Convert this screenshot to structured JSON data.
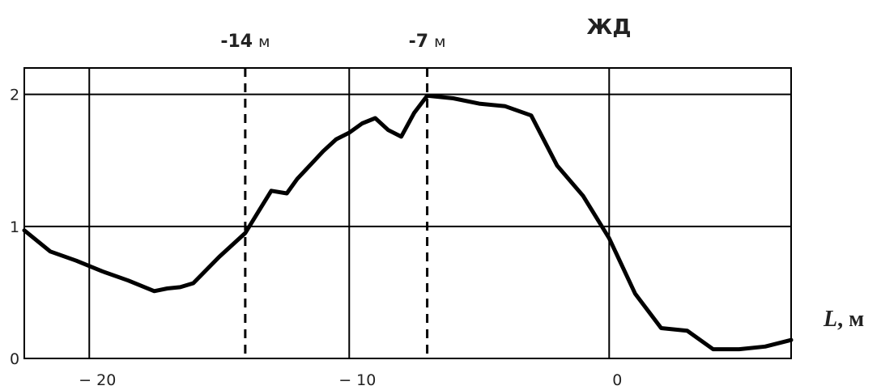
{
  "chart_data": {
    "type": "line",
    "title": "ЖД",
    "xlabel": {
      "symbol": "L",
      "unit": ", м"
    },
    "ylabel": "",
    "xlim": [
      -22.5,
      7
    ],
    "ylim": [
      0,
      2.2
    ],
    "x_ticks": [
      {
        "value": -20,
        "label": "− 20"
      },
      {
        "value": -10,
        "label": "− 10"
      },
      {
        "value": 0,
        "label": "0"
      }
    ],
    "y_ticks": [
      {
        "value": 0,
        "label": "0"
      },
      {
        "value": 1,
        "label": "1"
      },
      {
        "value": 2,
        "label": "2"
      }
    ],
    "grid": true,
    "markers": [
      {
        "x": -14,
        "value": "-14",
        "unit": "м"
      },
      {
        "x": -7,
        "value": "-7",
        "unit": "м"
      }
    ],
    "series": [
      {
        "x": [
          -22.5,
          -21.5,
          -20.5,
          -19.5,
          -18.5,
          -17.5,
          -17,
          -16.5,
          -16,
          -15,
          -14,
          -13.5,
          -13,
          -12.4,
          -12,
          -11,
          -10.5,
          -10,
          -9.5,
          -9,
          -8.5,
          -8,
          -7.5,
          -7,
          -6,
          -5,
          -4,
          -3,
          -2,
          -1,
          0,
          1,
          2,
          3,
          4,
          5,
          6,
          7
        ],
        "y": [
          0.97,
          0.81,
          0.74,
          0.66,
          0.59,
          0.51,
          0.53,
          0.54,
          0.57,
          0.77,
          0.95,
          1.11,
          1.27,
          1.25,
          1.36,
          1.57,
          1.66,
          1.71,
          1.78,
          1.82,
          1.73,
          1.68,
          1.86,
          1.99,
          1.97,
          1.93,
          1.91,
          1.84,
          1.46,
          1.23,
          0.91,
          0.49,
          0.23,
          0.21,
          0.07,
          0.07,
          0.09,
          0.14
        ]
      }
    ]
  }
}
